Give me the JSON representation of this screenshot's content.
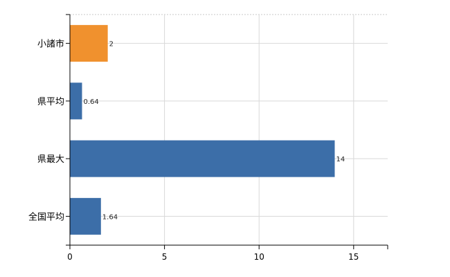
{
  "chart_data": {
    "type": "bar",
    "orientation": "horizontal",
    "categories": [
      "小諸市",
      "県平均",
      "県最大",
      "全国平均"
    ],
    "values": [
      2,
      0.64,
      14,
      1.64
    ],
    "data_labels": [
      "2",
      "0.64",
      "14",
      "1.64"
    ],
    "bar_colors": [
      "#f0912e",
      "#3c6ea8",
      "#3c6ea8",
      "#3c6ea8"
    ],
    "xlim": [
      0,
      16.8
    ],
    "xticks": [
      0,
      5,
      10,
      15
    ],
    "grid": true,
    "title": "",
    "xlabel": "",
    "ylabel": ""
  }
}
